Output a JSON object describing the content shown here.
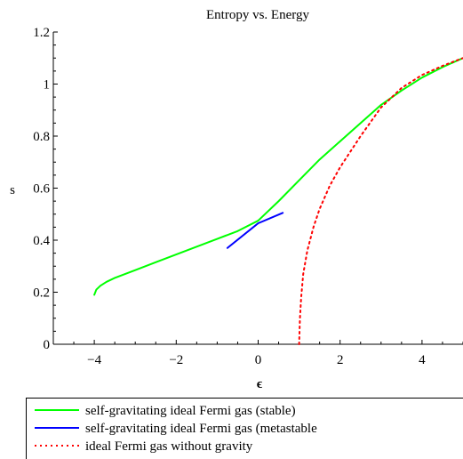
{
  "chart_data": {
    "type": "line",
    "title": "Entropy vs. Energy",
    "xlabel": "ϵ",
    "ylabel": "s",
    "xlim": [
      -5,
      5
    ],
    "ylim": [
      0,
      1.2
    ],
    "xticks": [
      -4,
      -2,
      0,
      2,
      4
    ],
    "xtick_labels": [
      "−4",
      "−2",
      "0",
      "2",
      "4"
    ],
    "yticks": [
      0,
      0.2,
      0.4,
      0.6,
      0.8,
      1,
      1.2
    ],
    "ytick_labels": [
      "0",
      "0.2",
      "0.4",
      "0.6",
      "0.8",
      "1",
      "1.2"
    ],
    "grid": false,
    "legend_position": "bottom",
    "series": [
      {
        "name": "self-gravitating ideal Fermi gas (stable)",
        "color": "#00ff00",
        "style": "solid",
        "x": [
          -4.0,
          -3.95,
          -3.85,
          -3.7,
          -3.5,
          -3.0,
          -2.5,
          -2.0,
          -1.5,
          -1.0,
          -0.5,
          0.0,
          0.5,
          1.0,
          1.5,
          2.0,
          2.5,
          3.0,
          3.5,
          4.0,
          4.5,
          5.0
        ],
        "y": [
          0.19,
          0.21,
          0.225,
          0.24,
          0.255,
          0.285,
          0.315,
          0.345,
          0.375,
          0.405,
          0.435,
          0.475,
          0.55,
          0.63,
          0.71,
          0.78,
          0.85,
          0.92,
          0.975,
          1.025,
          1.065,
          1.1
        ]
      },
      {
        "name": "self-gravitating ideal Fermi gas (metastable",
        "color": "#0000ff",
        "style": "solid",
        "x": [
          -0.75,
          0.0,
          0.6
        ],
        "y": [
          0.37,
          0.465,
          0.505
        ]
      },
      {
        "name": "ideal Fermi gas without gravity",
        "color": "#ff0000",
        "style": "dotted",
        "x": [
          1.0,
          1.02,
          1.05,
          1.1,
          1.2,
          1.35,
          1.5,
          1.75,
          2.0,
          2.25,
          2.5,
          3.0,
          3.5,
          4.0,
          4.5,
          5.0
        ],
        "y": [
          0.0,
          0.1,
          0.18,
          0.27,
          0.36,
          0.45,
          0.52,
          0.61,
          0.68,
          0.74,
          0.8,
          0.91,
          0.985,
          1.035,
          1.07,
          1.1
        ]
      }
    ]
  }
}
